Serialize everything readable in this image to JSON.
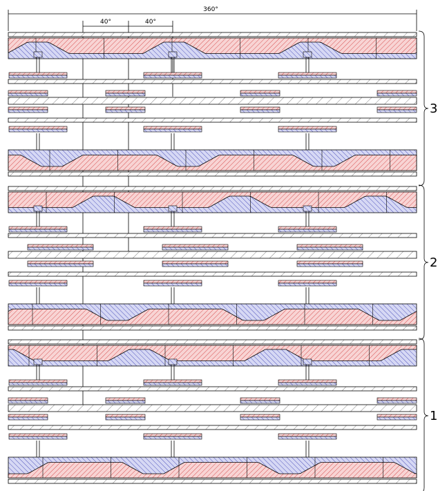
{
  "dimensions": {
    "total": "360°",
    "step_1": "40°",
    "step_2": "40°"
  },
  "groups": [
    {
      "label": "3"
    },
    {
      "label": "2"
    },
    {
      "label": "1"
    }
  ]
}
